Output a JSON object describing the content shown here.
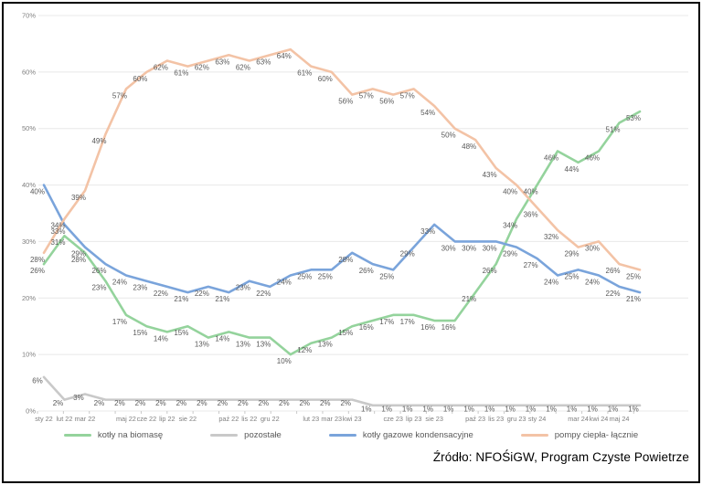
{
  "chart_data": {
    "type": "line",
    "title": "",
    "ylim": [
      0,
      70
    ],
    "y_ticks": [
      0,
      10,
      20,
      30,
      40,
      50,
      60,
      70
    ],
    "y_tick_suffix": "%",
    "grid": "horizontal",
    "legend_position": "bottom",
    "categories": [
      "sty 22",
      "lut 22",
      "mar 22",
      "kwi 22",
      "maj 22",
      "cze 22",
      "lip 22",
      "sie 22",
      "wrz 22",
      "paź 22",
      "lis 22",
      "gru 22",
      "sty 23",
      "lut 23",
      "mar 23",
      "kwi 23",
      "maj 23",
      "cze 23",
      "lip 23",
      "sie 23",
      "wrz 23",
      "paź 23",
      "lis 23",
      "gru 23",
      "sty 24",
      "lut 24",
      "mar 24",
      "kwi 24",
      "maj 24",
      "cze 24"
    ],
    "x_tick_labels": [
      "sty 22",
      "lut 22",
      "mar 22",
      "",
      "maj 22",
      "cze 22",
      "lip 22",
      "sie 22",
      "",
      "paź 22",
      "lis 22",
      "gru 22",
      "",
      "lut 23",
      "mar 23",
      "kwi 23",
      "",
      "cze 23",
      "lip 23",
      "sie 23",
      "",
      "paź 23",
      "lis 23",
      "gru 23",
      "sty 24",
      "",
      "mar 24",
      "kwi 24",
      "maj 24",
      ""
    ],
    "series": [
      {
        "name": "kotły na biomasę",
        "color": "#94D39C",
        "values": [
          26,
          31,
          28,
          23,
          17,
          15,
          14,
          15,
          13,
          14,
          13,
          13,
          10,
          12,
          13,
          15,
          16,
          17,
          17,
          16,
          16,
          21,
          26,
          34,
          40,
          46,
          44,
          46,
          51,
          53
        ]
      },
      {
        "name": "pozostałe",
        "color": "#C9C9C9",
        "values": [
          6,
          2,
          3,
          2,
          2,
          2,
          2,
          2,
          2,
          2,
          2,
          2,
          2,
          2,
          2,
          2,
          1,
          1,
          1,
          1,
          1,
          1,
          1,
          1,
          1,
          1,
          1,
          1,
          1,
          1
        ]
      },
      {
        "name": "kotły gazowe kondensacyjne",
        "color": "#7AA4DB",
        "values": [
          40,
          33,
          29,
          26,
          24,
          23,
          22,
          21,
          22,
          21,
          23,
          22,
          24,
          25,
          25,
          28,
          26,
          25,
          29,
          33,
          30,
          30,
          30,
          29,
          27,
          24,
          25,
          24,
          22,
          21
        ]
      },
      {
        "name": "pompy ciepła- łącznie",
        "color": "#F3C3A6",
        "values": [
          28,
          34,
          39,
          49,
          57,
          60,
          62,
          61,
          62,
          63,
          62,
          63,
          64,
          61,
          60,
          56,
          57,
          56,
          57,
          54,
          50,
          48,
          43,
          40,
          36,
          32,
          29,
          30,
          26,
          25
        ]
      }
    ],
    "data_label_color": "#595959",
    "axis_tick_color": "#7F7F7F",
    "gridline_color": "#E8E8E8"
  },
  "source_note": "Źródło: NFOŚiGW, Program Czyste Powietrze"
}
